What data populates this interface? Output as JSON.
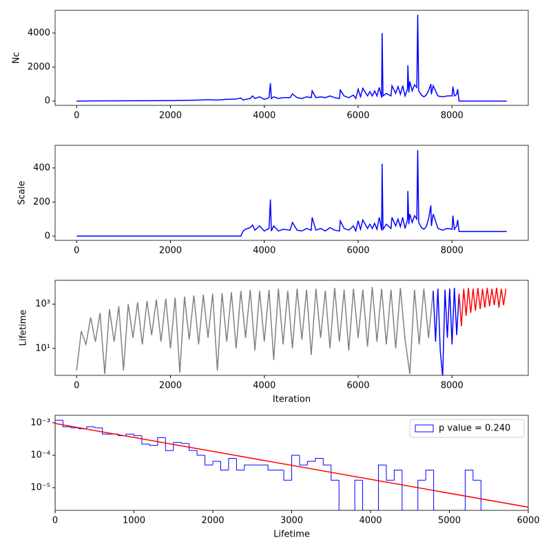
{
  "chart_data": [
    {
      "type": "line",
      "ylabel": "Nc",
      "xlim": [
        -458,
        9625
      ],
      "ylim": [
        -254,
        5334
      ],
      "xticks": [
        0,
        2000,
        4000,
        6000,
        8000
      ],
      "yticks": [
        0,
        2000,
        4000
      ],
      "series": [
        {
          "color": "#0000ff",
          "x": [
            0,
            500,
            1000,
            1500,
            2000,
            2500,
            2800,
            3000,
            3200,
            3400,
            3500,
            3550,
            3600,
            3700,
            3750,
            3800,
            3900,
            4000,
            4100,
            4130,
            4150,
            4200,
            4300,
            4400,
            4550,
            4600,
            4700,
            4800,
            4900,
            5000,
            5020,
            5100,
            5200,
            5300,
            5400,
            5500,
            5600,
            5620,
            5700,
            5800,
            5900,
            5950,
            6000,
            6050,
            6100,
            6200,
            6250,
            6300,
            6350,
            6400,
            6450,
            6500,
            6510,
            6530,
            6600,
            6700,
            6720,
            6800,
            6850,
            6900,
            6950,
            7000,
            7050,
            7060,
            7080,
            7100,
            7150,
            7200,
            7250,
            7270,
            7290,
            7350,
            7400,
            7450,
            7500,
            7550,
            7560,
            7600,
            7700,
            7800,
            7900,
            8000,
            8020,
            8050,
            8100,
            8120,
            8150,
            9167
          ],
          "values": [
            0,
            10,
            15,
            20,
            30,
            50,
            80,
            60,
            100,
            120,
            180,
            60,
            100,
            150,
            300,
            150,
            250,
            100,
            200,
            1050,
            150,
            250,
            150,
            200,
            200,
            420,
            200,
            150,
            250,
            200,
            600,
            200,
            250,
            200,
            300,
            200,
            150,
            650,
            300,
            200,
            350,
            150,
            700,
            250,
            750,
            300,
            550,
            300,
            600,
            300,
            800,
            200,
            4000,
            300,
            450,
            300,
            900,
            450,
            850,
            400,
            900,
            300,
            700,
            2100,
            500,
            1150,
            600,
            950,
            800,
            5080,
            600,
            350,
            250,
            350,
            600,
            1000,
            400,
            900,
            300,
            250,
            300,
            300,
            850,
            300,
            400,
            700,
            0,
            0
          ]
        }
      ]
    },
    {
      "type": "line",
      "ylabel": "Scale",
      "xlim": [
        -458,
        9625
      ],
      "ylim": [
        -25,
        533
      ],
      "xticks": [
        0,
        2000,
        4000,
        6000,
        8000
      ],
      "yticks": [
        0,
        200,
        400
      ],
      "series": [
        {
          "color": "#0000ff",
          "x": [
            0,
            500,
            1000,
            1500,
            2000,
            2500,
            2800,
            3000,
            3200,
            3400,
            3500,
            3550,
            3600,
            3700,
            3750,
            3800,
            3900,
            4000,
            4100,
            4130,
            4150,
            4200,
            4300,
            4400,
            4550,
            4600,
            4700,
            4800,
            4900,
            5000,
            5020,
            5100,
            5200,
            5300,
            5400,
            5500,
            5600,
            5620,
            5700,
            5800,
            5900,
            5950,
            6000,
            6050,
            6100,
            6200,
            6250,
            6300,
            6350,
            6400,
            6450,
            6500,
            6510,
            6530,
            6600,
            6700,
            6720,
            6800,
            6850,
            6900,
            6950,
            7000,
            7050,
            7060,
            7080,
            7100,
            7150,
            7200,
            7250,
            7270,
            7290,
            7350,
            7400,
            7450,
            7500,
            7550,
            7560,
            7600,
            7700,
            7800,
            7900,
            8000,
            8020,
            8050,
            8100,
            8120,
            8150,
            9167
          ],
          "values": [
            0,
            0,
            0,
            0,
            0,
            0,
            0,
            0,
            0,
            0,
            0,
            30,
            40,
            50,
            65,
            35,
            60,
            30,
            45,
            215,
            30,
            60,
            30,
            40,
            35,
            80,
            35,
            30,
            45,
            35,
            110,
            35,
            45,
            30,
            50,
            35,
            30,
            90,
            45,
            35,
            60,
            30,
            90,
            40,
            95,
            45,
            70,
            45,
            75,
            40,
            110,
            35,
            425,
            40,
            70,
            45,
            110,
            60,
            100,
            55,
            110,
            45,
            95,
            265,
            70,
            130,
            80,
            120,
            100,
            505,
            80,
            50,
            40,
            55,
            100,
            180,
            60,
            130,
            45,
            35,
            45,
            40,
            120,
            40,
            60,
            95,
            27,
            27
          ]
        }
      ]
    },
    {
      "type": "line",
      "ylabel": "Lifetime",
      "xlabel": "Iteration",
      "yscale": "log",
      "xlim": [
        -458,
        9625
      ],
      "ylim": [
        0.6,
        12000
      ],
      "xticks": [
        0,
        2000,
        4000,
        6000,
        8000
      ],
      "yticks": [
        {
          "value": 10,
          "label": "10¹"
        },
        {
          "value": 1000,
          "label": "10³"
        }
      ],
      "series": [
        {
          "color": "#808080",
          "x": [
            0,
            100,
            200,
            300,
            400,
            500,
            600,
            700,
            800,
            900,
            1000,
            1100,
            1200,
            1300,
            1400,
            1500,
            1600,
            1700,
            1800,
            1900,
            2000,
            2100,
            2200,
            2300,
            2400,
            2500,
            2600,
            2700,
            2800,
            2900,
            3000,
            3100,
            3200,
            3300,
            3400,
            3500,
            3600,
            3700,
            3800,
            3900,
            4000,
            4100,
            4200,
            4300,
            4400,
            4500,
            4600,
            4700,
            4800,
            4900,
            5000,
            5100,
            5200,
            5300,
            5400,
            5500,
            5600,
            5700,
            5800,
            5900,
            6000,
            6100,
            6200,
            6300,
            6400,
            6500,
            6600,
            6700,
            6800,
            6900,
            7000,
            7100,
            7200,
            7300,
            7400,
            7500,
            7600
          ],
          "values": [
            1,
            60,
            15,
            250,
            20,
            400,
            0.7,
            600,
            20,
            800,
            1,
            1000,
            30,
            1200,
            15,
            1400,
            40,
            1600,
            20,
            1800,
            10,
            2000,
            0.8,
            2200,
            25,
            2500,
            15,
            2700,
            30,
            3000,
            1,
            3200,
            20,
            3500,
            10,
            4000,
            30,
            4500,
            8,
            4000,
            20,
            4500,
            3,
            5000,
            15,
            4000,
            10,
            5000,
            25,
            4500,
            5,
            5000,
            30,
            4000,
            10,
            5500,
            20,
            4500,
            8,
            5000,
            30,
            4500,
            12,
            6000,
            20,
            5000,
            15,
            4500,
            10,
            5500,
            25,
            0.7,
            4500,
            15,
            5000,
            30,
            4000
          ]
        },
        {
          "color": "#0000ff",
          "x": [
            7600,
            7650,
            7700,
            7750,
            7800,
            7850,
            7900,
            7950,
            8000,
            8050,
            8100,
            8150
          ],
          "values": [
            4000,
            20,
            5000,
            8,
            0.5,
            4500,
            30,
            5000,
            15,
            5500,
            40,
            3000
          ]
        },
        {
          "color": "#ff0000",
          "x": [
            8150,
            8200,
            8250,
            8300,
            8350,
            8400,
            8450,
            8500,
            8550,
            8600,
            8650,
            8700,
            8750,
            8800,
            8850,
            8900,
            8950,
            9000,
            9050,
            9100,
            9150
          ],
          "values": [
            3000,
            100,
            5000,
            300,
            5500,
            400,
            5000,
            500,
            5500,
            600,
            5000,
            700,
            5500,
            800,
            5000,
            900,
            5500,
            700,
            5000,
            900,
            5000
          ]
        }
      ]
    },
    {
      "type": "histogram",
      "xlabel": "Lifetime",
      "yscale": "log",
      "legend": "upper right",
      "xlim": [
        0,
        6000
      ],
      "ylim": [
        2e-06,
        0.0017
      ],
      "xticks": [
        0,
        1000,
        2000,
        3000,
        4000,
        5000,
        6000
      ],
      "yticks": [
        {
          "value": 1e-05,
          "label": "10⁻⁵"
        },
        {
          "value": 0.0001,
          "label": "10⁻⁴"
        },
        {
          "value": 0.001,
          "label": "10⁻³"
        }
      ],
      "series": [
        {
          "name": "p value = 0.240",
          "color": "#0000ff",
          "bins": [
            0,
            100,
            200,
            300,
            400,
            500,
            600,
            700,
            800,
            900,
            1000,
            1100,
            1200,
            1300,
            1400,
            1500,
            1600,
            1700,
            1800,
            1900,
            2000,
            2100,
            2200,
            2300,
            2400,
            2500,
            2600,
            2700,
            2800,
            2900,
            3000,
            3100,
            3200,
            3300,
            3400,
            3500,
            3600,
            3700,
            3800,
            3900,
            4000,
            4100,
            4200,
            4300,
            4400,
            4500,
            4600,
            4700,
            4800,
            4900,
            5000,
            5100,
            5200,
            5300,
            5400,
            5500
          ],
          "values": [
            0.0012,
            0.00075,
            0.0007,
            0.00065,
            0.00075,
            0.0007,
            0.00045,
            0.00045,
            0.0004,
            0.00045,
            0.0004,
            0.00022,
            0.0002,
            0.00035,
            0.00014,
            0.00025,
            0.00023,
            0.00014,
            0.0001,
            5e-05,
            6.5e-05,
            3.5e-05,
            8e-05,
            3.5e-05,
            5e-05,
            5e-05,
            5e-05,
            3.5e-05,
            3.5e-05,
            1.7e-05,
            0.0001,
            5e-05,
            6.5e-05,
            8e-05,
            5e-05,
            1.7e-05,
            0,
            0,
            1.7e-05,
            0,
            0,
            5e-05,
            1.7e-05,
            3.5e-05,
            0,
            0,
            1.7e-05,
            3.5e-05,
            0,
            0,
            0,
            0,
            3.5e-05,
            1.7e-05,
            0
          ]
        }
      ],
      "fit": {
        "color": "#ff0000",
        "x": [
          0,
          6000
        ],
        "values": [
          0.00095,
          2.5e-06
        ]
      }
    }
  ]
}
